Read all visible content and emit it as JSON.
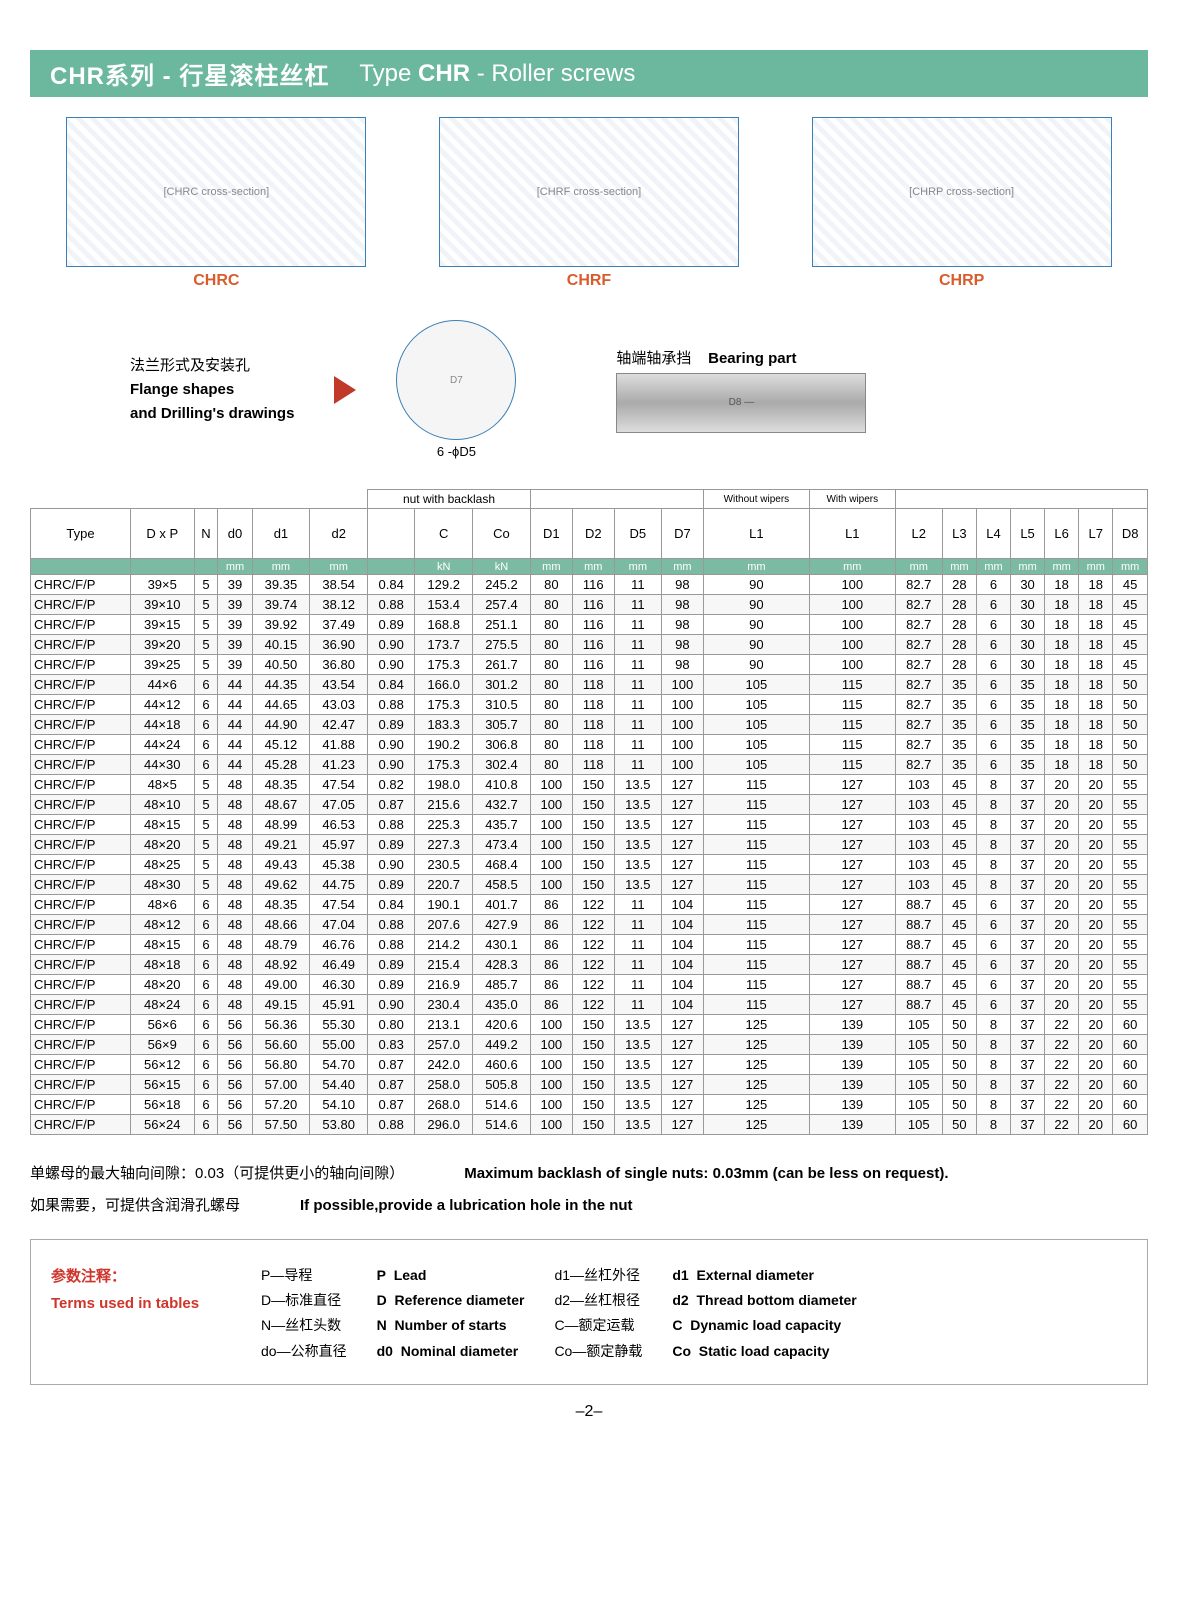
{
  "title": {
    "cn": "CHR系列 - 行星滚柱丝杠",
    "en_prefix": "Type ",
    "en_bold": "CHR",
    "en_suffix": " - Roller screws"
  },
  "diagram_labels": {
    "chrc": "CHRC",
    "chrf": "CHRF",
    "chrp": "CHRP"
  },
  "flange": {
    "cn": "法兰形式及安装孔",
    "en1": "Flange shapes",
    "en2": "and Drilling's drawings",
    "flange_note": "6 -ϕD5"
  },
  "bearing": {
    "cn": "轴端轴承挡",
    "en": "Bearing part"
  },
  "table": {
    "group_headers": {
      "nut": "nut with backlash",
      "without": "Without wipers",
      "with": "With wipers"
    },
    "columns": [
      "Type",
      "D x P",
      "N",
      "d0",
      "d1",
      "d2",
      "",
      "C",
      "Co",
      "D1",
      "D2",
      "D5",
      "D7",
      "L1",
      "L1",
      "L2",
      "L3",
      "L4",
      "L5",
      "L6",
      "L7",
      "D8"
    ],
    "units": [
      "",
      "",
      "",
      "mm",
      "mm",
      "mm",
      "",
      "kN",
      "kN",
      "mm",
      "mm",
      "mm",
      "mm",
      "mm",
      "mm",
      "mm",
      "mm",
      "mm",
      "mm",
      "mm",
      "mm",
      "mm"
    ],
    "rows": [
      [
        "CHRC/F/P",
        "39×5",
        "5",
        "39",
        "39.35",
        "38.54",
        "0.84",
        "129.2",
        "245.2",
        "80",
        "116",
        "11",
        "98",
        "90",
        "100",
        "82.7",
        "28",
        "6",
        "30",
        "18",
        "18",
        "45"
      ],
      [
        "CHRC/F/P",
        "39×10",
        "5",
        "39",
        "39.74",
        "38.12",
        "0.88",
        "153.4",
        "257.4",
        "80",
        "116",
        "11",
        "98",
        "90",
        "100",
        "82.7",
        "28",
        "6",
        "30",
        "18",
        "18",
        "45"
      ],
      [
        "CHRC/F/P",
        "39×15",
        "5",
        "39",
        "39.92",
        "37.49",
        "0.89",
        "168.8",
        "251.1",
        "80",
        "116",
        "11",
        "98",
        "90",
        "100",
        "82.7",
        "28",
        "6",
        "30",
        "18",
        "18",
        "45"
      ],
      [
        "CHRC/F/P",
        "39×20",
        "5",
        "39",
        "40.15",
        "36.90",
        "0.90",
        "173.7",
        "275.5",
        "80",
        "116",
        "11",
        "98",
        "90",
        "100",
        "82.7",
        "28",
        "6",
        "30",
        "18",
        "18",
        "45"
      ],
      [
        "CHRC/F/P",
        "39×25",
        "5",
        "39",
        "40.50",
        "36.80",
        "0.90",
        "175.3",
        "261.7",
        "80",
        "116",
        "11",
        "98",
        "90",
        "100",
        "82.7",
        "28",
        "6",
        "30",
        "18",
        "18",
        "45"
      ],
      [
        "CHRC/F/P",
        "44×6",
        "6",
        "44",
        "44.35",
        "43.54",
        "0.84",
        "166.0",
        "301.2",
        "80",
        "118",
        "11",
        "100",
        "105",
        "115",
        "82.7",
        "35",
        "6",
        "35",
        "18",
        "18",
        "50"
      ],
      [
        "CHRC/F/P",
        "44×12",
        "6",
        "44",
        "44.65",
        "43.03",
        "0.88",
        "175.3",
        "310.5",
        "80",
        "118",
        "11",
        "100",
        "105",
        "115",
        "82.7",
        "35",
        "6",
        "35",
        "18",
        "18",
        "50"
      ],
      [
        "CHRC/F/P",
        "44×18",
        "6",
        "44",
        "44.90",
        "42.47",
        "0.89",
        "183.3",
        "305.7",
        "80",
        "118",
        "11",
        "100",
        "105",
        "115",
        "82.7",
        "35",
        "6",
        "35",
        "18",
        "18",
        "50"
      ],
      [
        "CHRC/F/P",
        "44×24",
        "6",
        "44",
        "45.12",
        "41.88",
        "0.90",
        "190.2",
        "306.8",
        "80",
        "118",
        "11",
        "100",
        "105",
        "115",
        "82.7",
        "35",
        "6",
        "35",
        "18",
        "18",
        "50"
      ],
      [
        "CHRC/F/P",
        "44×30",
        "6",
        "44",
        "45.28",
        "41.23",
        "0.90",
        "175.3",
        "302.4",
        "80",
        "118",
        "11",
        "100",
        "105",
        "115",
        "82.7",
        "35",
        "6",
        "35",
        "18",
        "18",
        "50"
      ],
      [
        "CHRC/F/P",
        "48×5",
        "5",
        "48",
        "48.35",
        "47.54",
        "0.82",
        "198.0",
        "410.8",
        "100",
        "150",
        "13.5",
        "127",
        "115",
        "127",
        "103",
        "45",
        "8",
        "37",
        "20",
        "20",
        "55"
      ],
      [
        "CHRC/F/P",
        "48×10",
        "5",
        "48",
        "48.67",
        "47.05",
        "0.87",
        "215.6",
        "432.7",
        "100",
        "150",
        "13.5",
        "127",
        "115",
        "127",
        "103",
        "45",
        "8",
        "37",
        "20",
        "20",
        "55"
      ],
      [
        "CHRC/F/P",
        "48×15",
        "5",
        "48",
        "48.99",
        "46.53",
        "0.88",
        "225.3",
        "435.7",
        "100",
        "150",
        "13.5",
        "127",
        "115",
        "127",
        "103",
        "45",
        "8",
        "37",
        "20",
        "20",
        "55"
      ],
      [
        "CHRC/F/P",
        "48×20",
        "5",
        "48",
        "49.21",
        "45.97",
        "0.89",
        "227.3",
        "473.4",
        "100",
        "150",
        "13.5",
        "127",
        "115",
        "127",
        "103",
        "45",
        "8",
        "37",
        "20",
        "20",
        "55"
      ],
      [
        "CHRC/F/P",
        "48×25",
        "5",
        "48",
        "49.43",
        "45.38",
        "0.90",
        "230.5",
        "468.4",
        "100",
        "150",
        "13.5",
        "127",
        "115",
        "127",
        "103",
        "45",
        "8",
        "37",
        "20",
        "20",
        "55"
      ],
      [
        "CHRC/F/P",
        "48×30",
        "5",
        "48",
        "49.62",
        "44.75",
        "0.89",
        "220.7",
        "458.5",
        "100",
        "150",
        "13.5",
        "127",
        "115",
        "127",
        "103",
        "45",
        "8",
        "37",
        "20",
        "20",
        "55"
      ],
      [
        "CHRC/F/P",
        "48×6",
        "6",
        "48",
        "48.35",
        "47.54",
        "0.84",
        "190.1",
        "401.7",
        "86",
        "122",
        "11",
        "104",
        "115",
        "127",
        "88.7",
        "45",
        "6",
        "37",
        "20",
        "20",
        "55"
      ],
      [
        "CHRC/F/P",
        "48×12",
        "6",
        "48",
        "48.66",
        "47.04",
        "0.88",
        "207.6",
        "427.9",
        "86",
        "122",
        "11",
        "104",
        "115",
        "127",
        "88.7",
        "45",
        "6",
        "37",
        "20",
        "20",
        "55"
      ],
      [
        "CHRC/F/P",
        "48×15",
        "6",
        "48",
        "48.79",
        "46.76",
        "0.88",
        "214.2",
        "430.1",
        "86",
        "122",
        "11",
        "104",
        "115",
        "127",
        "88.7",
        "45",
        "6",
        "37",
        "20",
        "20",
        "55"
      ],
      [
        "CHRC/F/P",
        "48×18",
        "6",
        "48",
        "48.92",
        "46.49",
        "0.89",
        "215.4",
        "428.3",
        "86",
        "122",
        "11",
        "104",
        "115",
        "127",
        "88.7",
        "45",
        "6",
        "37",
        "20",
        "20",
        "55"
      ],
      [
        "CHRC/F/P",
        "48×20",
        "6",
        "48",
        "49.00",
        "46.30",
        "0.89",
        "216.9",
        "485.7",
        "86",
        "122",
        "11",
        "104",
        "115",
        "127",
        "88.7",
        "45",
        "6",
        "37",
        "20",
        "20",
        "55"
      ],
      [
        "CHRC/F/P",
        "48×24",
        "6",
        "48",
        "49.15",
        "45.91",
        "0.90",
        "230.4",
        "435.0",
        "86",
        "122",
        "11",
        "104",
        "115",
        "127",
        "88.7",
        "45",
        "6",
        "37",
        "20",
        "20",
        "55"
      ],
      [
        "CHRC/F/P",
        "56×6",
        "6",
        "56",
        "56.36",
        "55.30",
        "0.80",
        "213.1",
        "420.6",
        "100",
        "150",
        "13.5",
        "127",
        "125",
        "139",
        "105",
        "50",
        "8",
        "37",
        "22",
        "20",
        "60"
      ],
      [
        "CHRC/F/P",
        "56×9",
        "6",
        "56",
        "56.60",
        "55.00",
        "0.83",
        "257.0",
        "449.2",
        "100",
        "150",
        "13.5",
        "127",
        "125",
        "139",
        "105",
        "50",
        "8",
        "37",
        "22",
        "20",
        "60"
      ],
      [
        "CHRC/F/P",
        "56×12",
        "6",
        "56",
        "56.80",
        "54.70",
        "0.87",
        "242.0",
        "460.6",
        "100",
        "150",
        "13.5",
        "127",
        "125",
        "139",
        "105",
        "50",
        "8",
        "37",
        "22",
        "20",
        "60"
      ],
      [
        "CHRC/F/P",
        "56×15",
        "6",
        "56",
        "57.00",
        "54.40",
        "0.87",
        "258.0",
        "505.8",
        "100",
        "150",
        "13.5",
        "127",
        "125",
        "139",
        "105",
        "50",
        "8",
        "37",
        "22",
        "20",
        "60"
      ],
      [
        "CHRC/F/P",
        "56×18",
        "6",
        "56",
        "57.20",
        "54.10",
        "0.87",
        "268.0",
        "514.6",
        "100",
        "150",
        "13.5",
        "127",
        "125",
        "139",
        "105",
        "50",
        "8",
        "37",
        "22",
        "20",
        "60"
      ],
      [
        "CHRC/F/P",
        "56×24",
        "6",
        "56",
        "57.50",
        "53.80",
        "0.88",
        "296.0",
        "514.6",
        "100",
        "150",
        "13.5",
        "127",
        "125",
        "139",
        "105",
        "50",
        "8",
        "37",
        "22",
        "20",
        "60"
      ]
    ]
  },
  "notes": {
    "cn1": "单螺母的最大轴向间隙：0.03（可提供更小的轴向间隙）",
    "en1": "Maximum backlash of single nuts: 0.03mm (can be less on request).",
    "cn2": "如果需要，可提供含润滑孔螺母",
    "en2": "If possible,provide a lubrication hole in the nut"
  },
  "terms": {
    "title_cn": "参数注释：",
    "title_en": "Terms used in tables",
    "col_cn1": [
      "P—导程",
      "D—标准直径",
      "N—丝杠头数",
      "do—公称直径"
    ],
    "col_en1_sym": [
      "P",
      "D",
      "N",
      "d0"
    ],
    "col_en1_txt": [
      "Lead",
      "Reference diameter",
      "Number of starts",
      "Nominal diameter"
    ],
    "col_cn2": [
      "d1—丝杠外径",
      "d2—丝杠根径",
      "C—额定运载",
      "Co—额定静载"
    ],
    "col_en2_sym": [
      "d1",
      "d2",
      "C",
      "Co"
    ],
    "col_en2_txt": [
      "External diameter",
      "Thread bottom diameter",
      "Dynamic load capacity",
      "Static load capacity"
    ]
  },
  "page_number": "–2–"
}
